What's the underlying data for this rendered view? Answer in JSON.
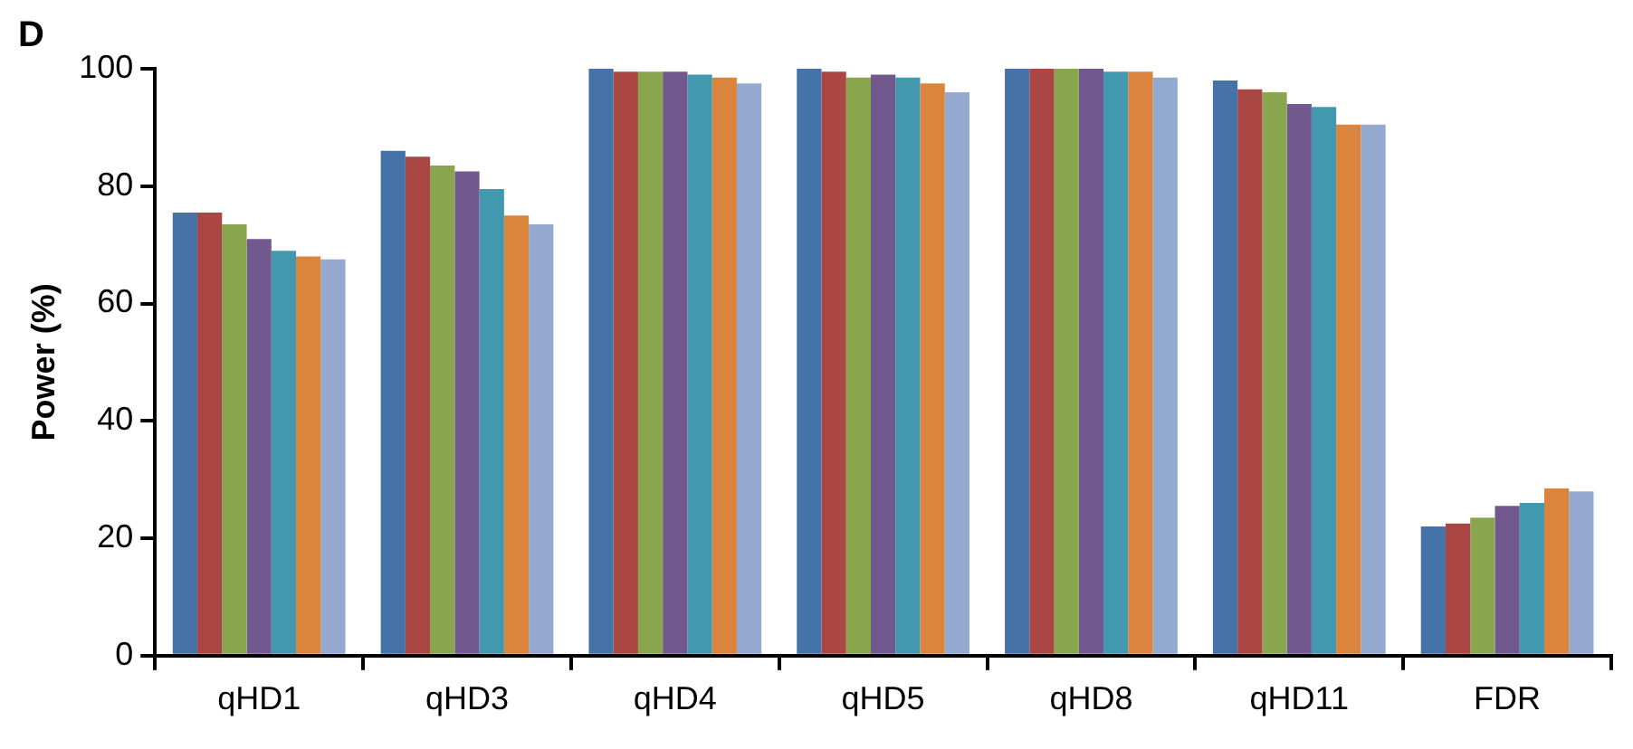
{
  "chart_data": {
    "type": "bar",
    "title": "D",
    "ylabel": "Power (%)",
    "categories": [
      "qHD1",
      "qHD3",
      "qHD4",
      "qHD5",
      "qHD8",
      "qHD11",
      "FDR"
    ],
    "series": [
      {
        "color": "#4572a7",
        "values": [
          75.5,
          86,
          100,
          100,
          100,
          98,
          22
        ]
      },
      {
        "color": "#aa4643",
        "values": [
          75.5,
          85,
          99.5,
          99.5,
          100,
          96.5,
          22.5
        ]
      },
      {
        "color": "#89a54e",
        "values": [
          73.5,
          83.5,
          99.5,
          98.5,
          100,
          96,
          23.5
        ]
      },
      {
        "color": "#71588f",
        "values": [
          71,
          82.5,
          99.5,
          99,
          100,
          94,
          25.5
        ]
      },
      {
        "color": "#4198af",
        "values": [
          69,
          79.5,
          99,
          98.5,
          99.5,
          93.5,
          26
        ]
      },
      {
        "color": "#db843d",
        "values": [
          68,
          75,
          98.5,
          97.5,
          99.5,
          90.5,
          28.5
        ]
      },
      {
        "color": "#93a9cf",
        "values": [
          67.5,
          73.5,
          97.5,
          96,
          98.5,
          90.5,
          28
        ]
      }
    ],
    "ylim": [
      0,
      100
    ],
    "yticks": [
      0,
      20,
      40,
      60,
      80,
      100
    ],
    "grid": false,
    "legend": false
  }
}
